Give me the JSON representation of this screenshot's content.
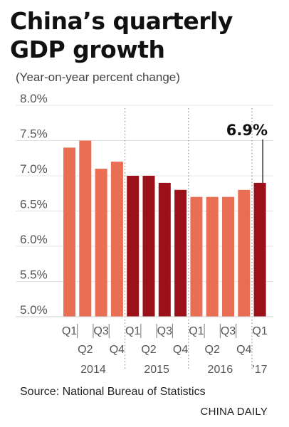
{
  "header": {
    "title_line1": "China’s quarterly",
    "title_line2": "GDP growth",
    "subtitle": "(Year-on-year percent change)"
  },
  "footer": {
    "source": "Source: National Bureau of Statistics",
    "brand": "CHINA DAILY"
  },
  "colors": {
    "light_bar": "#ea6e54",
    "dark_bar": "#9b1019",
    "grid": "#e4e4e4",
    "separator": "#9a9a9a"
  },
  "chart_data": {
    "type": "bar",
    "title": "China’s quarterly GDP growth",
    "subtitle": "(Year-on-year percent change)",
    "ylim": [
      5.0,
      8.0
    ],
    "yticks": [
      "8.0%",
      "7.5%",
      "7.0%",
      "6.5%",
      "6.0%",
      "5.5%",
      "5.0%"
    ],
    "ytick_values": [
      8.0,
      7.5,
      7.0,
      6.5,
      6.0,
      5.5,
      5.0
    ],
    "grid": true,
    "categories": [
      "Q1",
      "Q2",
      "Q3",
      "Q4",
      "Q1",
      "Q2",
      "Q3",
      "Q4",
      "Q1",
      "Q2",
      "Q3",
      "Q4",
      "Q1"
    ],
    "years": [
      "2014",
      "2014",
      "2014",
      "2014",
      "2015",
      "2015",
      "2015",
      "2015",
      "2016",
      "2016",
      "2016",
      "2016",
      "2017"
    ],
    "year_labels": [
      {
        "label": "2014",
        "first": 0,
        "last": 3
      },
      {
        "label": "2015",
        "first": 4,
        "last": 7
      },
      {
        "label": "2016",
        "first": 8,
        "last": 11
      },
      {
        "label": "'17",
        "first": 12,
        "last": 12
      }
    ],
    "values": [
      7.4,
      7.5,
      7.1,
      7.2,
      7.0,
      7.0,
      6.9,
      6.8,
      6.7,
      6.7,
      6.7,
      6.8,
      6.9
    ],
    "annotation": {
      "index": 12,
      "text": "6.9%"
    }
  }
}
